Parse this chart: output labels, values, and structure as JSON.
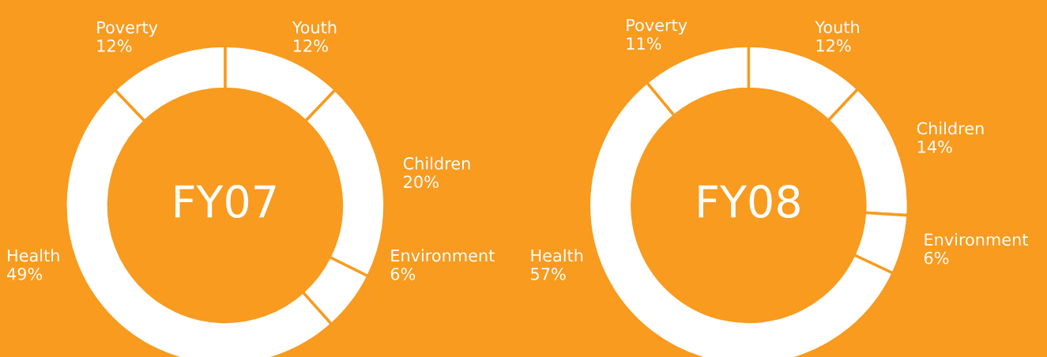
{
  "chart_data": [
    {
      "type": "donut",
      "title": "FY07",
      "categories": [
        "Youth",
        "Children",
        "Environment",
        "Health",
        "Poverty"
      ],
      "values": [
        12,
        20,
        6,
        49,
        12
      ],
      "value_labels": [
        "12%",
        "20%",
        "6%",
        "49%",
        "12%"
      ],
      "colors": [
        "#ffffff",
        "#ffffff",
        "#ffffff",
        "#ffffff",
        "#ffffff"
      ],
      "legend": false
    },
    {
      "type": "donut",
      "title": "FY08",
      "categories": [
        "Youth",
        "Children",
        "Environment",
        "Health",
        "Poverty"
      ],
      "values": [
        12,
        14,
        6,
        57,
        11
      ],
      "value_labels": [
        "12%",
        "14%",
        "6%",
        "57%",
        "11%"
      ],
      "colors": [
        "#ffffff",
        "#ffffff",
        "#ffffff",
        "#ffffff",
        "#ffffff"
      ],
      "legend": false
    }
  ]
}
